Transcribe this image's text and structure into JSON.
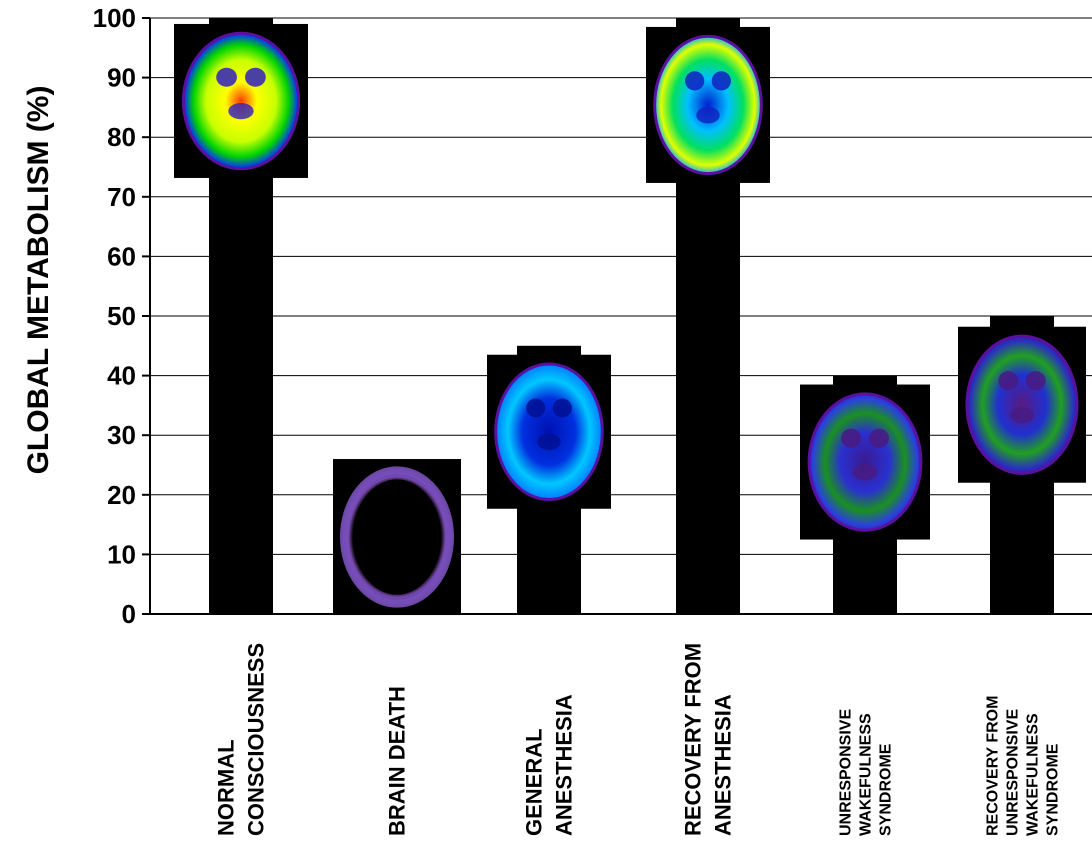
{
  "chart_data": {
    "type": "bar",
    "ylabel": "GLOBAL METABOLISM (%)",
    "xlabel": "",
    "ylim": [
      0,
      100
    ],
    "yticks": [
      0,
      10,
      20,
      30,
      40,
      50,
      60,
      70,
      80,
      90,
      100
    ],
    "grid": true,
    "categories": [
      [
        "NORMAL",
        "CONSCIOUSNESS"
      ],
      [
        "BRAIN DEATH"
      ],
      [
        "GENERAL",
        "ANESTHESIA"
      ],
      [
        "RECOVERY FROM",
        "ANESTHESIA"
      ],
      [
        "UNRESPONSIVE",
        "WAKEFULNESS",
        "SYNDROME"
      ],
      [
        "RECOVERY FROM",
        "UNRESPONSIVE",
        "WAKEFULNESS",
        "SYNDROME"
      ]
    ],
    "values": [
      100,
      25,
      45,
      100,
      40,
      50
    ],
    "bar_color": "#000000",
    "brain_scan_icons": [
      "pet-scan-normal-icon",
      "pet-scan-brain-death-icon",
      "pet-scan-anesthesia-icon",
      "pet-scan-recovery-anesthesia-icon",
      "pet-scan-uws-icon",
      "pet-scan-recovery-uws-icon"
    ]
  }
}
